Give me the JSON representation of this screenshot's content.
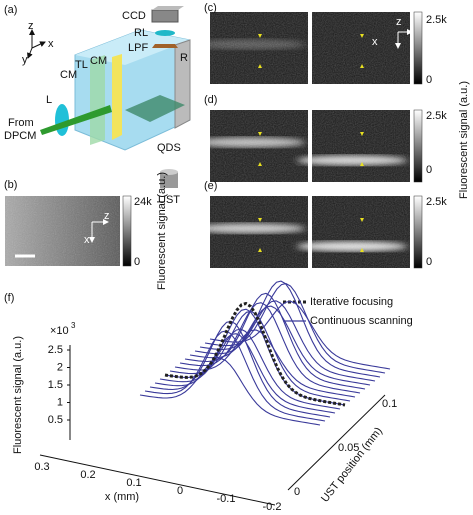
{
  "panels": {
    "a": {
      "label": "(a)",
      "axes": [
        "z",
        "x",
        "y"
      ],
      "parts": [
        "CCD",
        "RL",
        "LPF",
        "CM",
        "TL",
        "CM",
        "R",
        "L",
        "From",
        "DPCM",
        "QDS",
        "UST"
      ]
    },
    "b": {
      "label": "(b)",
      "axes": [
        "z",
        "x"
      ],
      "colorbar": [
        "24k",
        "0"
      ],
      "colorbar_title": "Fluorescent signal (a.u.)"
    },
    "c": {
      "label": "(c)",
      "axes": [
        "z",
        "x"
      ],
      "colorbar": [
        "2.5k",
        "0"
      ]
    },
    "d": {
      "label": "(d)",
      "colorbar": [
        "2.5k",
        "0"
      ]
    },
    "e": {
      "label": "(e)",
      "colorbar": [
        "2.5k",
        "0"
      ]
    },
    "cde_colorbar_title": "Fluorescent signal (a.u.)",
    "f": {
      "label": "(f)",
      "legend": [
        "Iterative focusing",
        "Continuous scanning"
      ],
      "y_label": "Fluorescent signal (a.u.)",
      "y_multiplier": [
        "×10",
        "3"
      ],
      "y_ticks": [
        "2.5",
        "2",
        "1.5",
        "1",
        "0.5"
      ],
      "x_label": "x (mm)",
      "x_ticks": [
        "0.3",
        "0.2",
        "0.1",
        "0",
        "-0.1",
        "-0.2"
      ],
      "depth_label": "UST position (mm)",
      "depth_ticks": [
        "0",
        "0.05",
        "0.1"
      ]
    }
  }
}
